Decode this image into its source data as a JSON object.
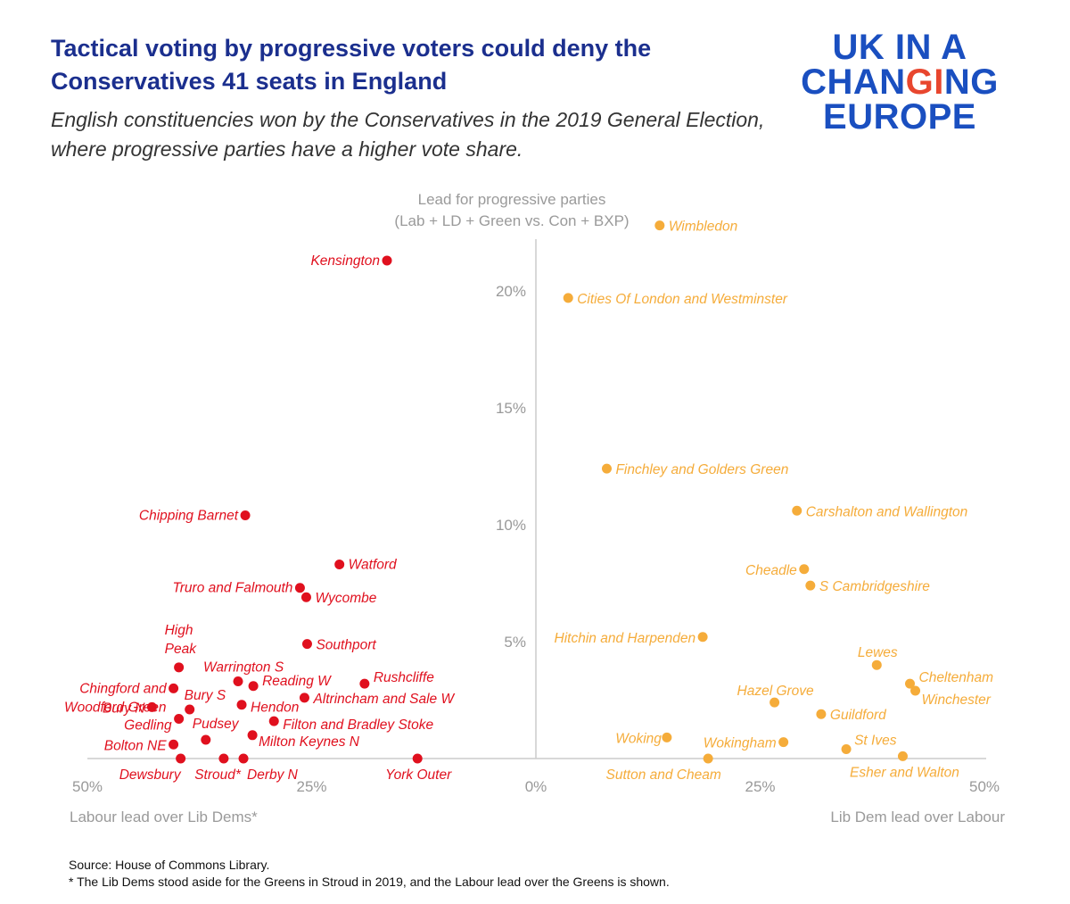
{
  "title": "Tactical voting by progressive voters could deny the Conservatives 41 seats in England",
  "subtitle": "English constituencies won by the Conservatives in  the 2019 General Election, where progressive parties have a higher vote share.",
  "logo": {
    "line1": "UK IN A",
    "line2a": "CHAN",
    "line2b": "G",
    "line2c": "I",
    "line2d": "NG",
    "line3": "EUROPE"
  },
  "source": "Source: House of Commons Library.",
  "footnote": "* The Lib Dems stood aside for the Greens in Stroud in 2019, and the Labour lead over the Greens is shown.",
  "colors": {
    "labour": "#e0101e",
    "libdem": "#f5ac3a",
    "title": "#1b2f8e",
    "logo": "#1a4fc0",
    "logo_accent": "#e8462e"
  },
  "chart_data": {
    "type": "scatter",
    "title": "Lead for progressive parties",
    "ylabel_line1": "Lead for progressive parties",
    "ylabel_line2": "(Lab + LD + Green vs. Con + BXP)",
    "xlabel_left": "Labour lead over Lib Dems*",
    "xlabel_right": "Lib Dem lead over Labour",
    "xlim": [
      -50,
      50
    ],
    "ylim": [
      0,
      23
    ],
    "x_ticks": [
      {
        "value": -50,
        "label": "50%"
      },
      {
        "value": -25,
        "label": "25%"
      },
      {
        "value": 0,
        "label": "0%"
      },
      {
        "value": 25,
        "label": "25%"
      },
      {
        "value": 50,
        "label": "50%"
      }
    ],
    "y_ticks": [
      {
        "value": 5,
        "label": "5%"
      },
      {
        "value": 10,
        "label": "10%"
      },
      {
        "value": 15,
        "label": "15%"
      },
      {
        "value": 20,
        "label": "20%"
      }
    ],
    "series": [
      {
        "name": "Labour lead",
        "color": "#e0101e",
        "points": [
          {
            "name": "Kensington",
            "x": -16.6,
            "y": 21.3,
            "anchor": "end",
            "dx": -8,
            "dy": 5
          },
          {
            "name": "Chipping Barnet",
            "x": -32.4,
            "y": 10.4,
            "anchor": "end",
            "dx": -8,
            "dy": 5
          },
          {
            "name": "Watford",
            "x": -21.9,
            "y": 8.3,
            "anchor": "start",
            "dx": 10,
            "dy": 5
          },
          {
            "name": "Truro and Falmouth",
            "x": -26.3,
            "y": 7.3,
            "anchor": "end",
            "dx": -8,
            "dy": 5
          },
          {
            "name": "Wycombe",
            "x": -25.6,
            "y": 6.9,
            "anchor": "start",
            "dx": 10,
            "dy": 6
          },
          {
            "name": "Southport",
            "x": -25.5,
            "y": 4.9,
            "anchor": "start",
            "dx": 10,
            "dy": 6
          },
          {
            "name": "High Peak",
            "x": -39.8,
            "y": 3.9,
            "anchor": "start",
            "dx": -16,
            "dy": -37,
            "wrap": [
              "High",
              "Peak"
            ]
          },
          {
            "name": "Chingford and Woodford Green",
            "x": -40.4,
            "y": 3.0,
            "anchor": "end",
            "dx": -8,
            "dy": 5,
            "wrap": [
              "Chingford and",
              "Woodford Green"
            ]
          },
          {
            "name": "Warrington S",
            "x": -33.2,
            "y": 3.3,
            "anchor": "start",
            "dx": -39,
            "dy": -11
          },
          {
            "name": "Reading W",
            "x": -31.5,
            "y": 3.1,
            "anchor": "start",
            "dx": 10,
            "dy": -1
          },
          {
            "name": "Rushcliffe",
            "x": -19.1,
            "y": 3.2,
            "anchor": "start",
            "dx": 10,
            "dy": -2
          },
          {
            "name": "Altrincham and Sale W",
            "x": -25.8,
            "y": 2.6,
            "anchor": "start",
            "dx": 10,
            "dy": 6
          },
          {
            "name": "Bury S",
            "x": -38.6,
            "y": 2.1,
            "anchor": "start",
            "dx": -6,
            "dy": -11
          },
          {
            "name": "Bury N",
            "x": -42.8,
            "y": 2.2,
            "anchor": "end",
            "dx": -8,
            "dy": 6
          },
          {
            "name": "Hendon",
            "x": -32.8,
            "y": 2.3,
            "anchor": "start",
            "dx": 10,
            "dy": 8
          },
          {
            "name": "Gedling",
            "x": -39.8,
            "y": 1.7,
            "anchor": "end",
            "dx": -8,
            "dy": 12
          },
          {
            "name": "Filton and Bradley Stoke",
            "x": -29.2,
            "y": 1.6,
            "anchor": "start",
            "dx": 10,
            "dy": 9
          },
          {
            "name": "Pudsey",
            "x": -36.8,
            "y": 0.8,
            "anchor": "start",
            "dx": -15,
            "dy": -13
          },
          {
            "name": "Milton Keynes N",
            "x": -31.6,
            "y": 1.0,
            "anchor": "start",
            "dx": 7,
            "dy": 12
          },
          {
            "name": "Bolton NE",
            "x": -40.4,
            "y": 0.6,
            "anchor": "end",
            "dx": -8,
            "dy": 6
          },
          {
            "name": "Dewsbury",
            "x": -39.6,
            "y": 0.0,
            "anchor": "end",
            "dx": 0,
            "dy": 23
          },
          {
            "name": "Stroud*",
            "x": -34.8,
            "y": 0.0,
            "anchor": "end",
            "dx": 19,
            "dy": 23
          },
          {
            "name": "Derby N",
            "x": -32.6,
            "y": 0.0,
            "anchor": "start",
            "dx": 4,
            "dy": 23
          },
          {
            "name": "York Outer",
            "x": -13.2,
            "y": 0.0,
            "anchor": "middle",
            "dx": 1,
            "dy": 23
          }
        ]
      },
      {
        "name": "Lib Dem lead",
        "color": "#f5ac3a",
        "points": [
          {
            "name": "Wimbledon",
            "x": 13.8,
            "y": 22.8,
            "anchor": "start",
            "dx": 10,
            "dy": 6
          },
          {
            "name": "Cities Of London and Westminster",
            "x": 3.6,
            "y": 19.7,
            "anchor": "start",
            "dx": 10,
            "dy": 6
          },
          {
            "name": "Finchley and Golders Green",
            "x": 7.9,
            "y": 12.4,
            "anchor": "start",
            "dx": 10,
            "dy": 6
          },
          {
            "name": "Carshalton and Wallington",
            "x": 29.1,
            "y": 10.6,
            "anchor": "start",
            "dx": 10,
            "dy": 6
          },
          {
            "name": "Cheadle",
            "x": 29.9,
            "y": 8.1,
            "anchor": "end",
            "dx": -8,
            "dy": 6
          },
          {
            "name": "S Cambridgeshire",
            "x": 30.6,
            "y": 7.4,
            "anchor": "start",
            "dx": 10,
            "dy": 6
          },
          {
            "name": "Hitchin and Harpenden",
            "x": 18.6,
            "y": 5.2,
            "anchor": "end",
            "dx": -8,
            "dy": 6
          },
          {
            "name": "Lewes",
            "x": 38.0,
            "y": 4.0,
            "anchor": "middle",
            "dx": 1,
            "dy": -9
          },
          {
            "name": "Cheltenham",
            "x": 41.7,
            "y": 3.2,
            "anchor": "start",
            "dx": 10,
            "dy": -2
          },
          {
            "name": "Winchester",
            "x": 42.3,
            "y": 2.9,
            "anchor": "start",
            "dx": 7,
            "dy": 15
          },
          {
            "name": "Hazel Grove",
            "x": 26.6,
            "y": 2.4,
            "anchor": "middle",
            "dx": 1,
            "dy": -8
          },
          {
            "name": "Guildford",
            "x": 31.8,
            "y": 1.9,
            "anchor": "start",
            "dx": 10,
            "dy": 6
          },
          {
            "name": "Woking",
            "x": 14.6,
            "y": 0.9,
            "anchor": "end",
            "dx": -6,
            "dy": 6
          },
          {
            "name": "Wokingham",
            "x": 27.6,
            "y": 0.7,
            "anchor": "end",
            "dx": -8,
            "dy": 6
          },
          {
            "name": "St Ives",
            "x": 34.6,
            "y": 0.4,
            "anchor": "start",
            "dx": 9,
            "dy": -5
          },
          {
            "name": "Sutton and Cheam",
            "x": 19.2,
            "y": 0.0,
            "anchor": "middle",
            "dx": -50,
            "dy": 23
          },
          {
            "name": "Esher and Walton",
            "x": 40.9,
            "y": 0.1,
            "anchor": "middle",
            "dx": 2,
            "dy": 23
          }
        ]
      }
    ]
  }
}
